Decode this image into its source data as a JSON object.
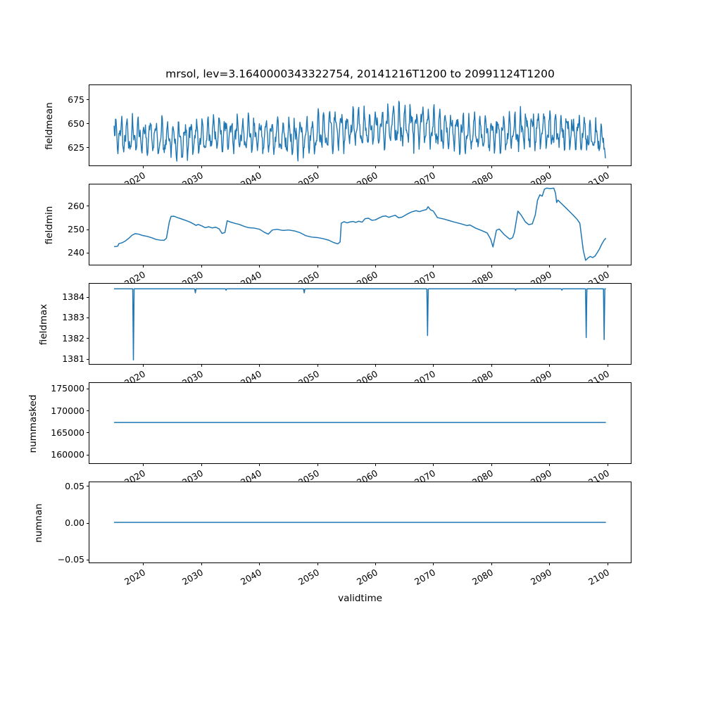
{
  "title": "mrsol, lev=3.1640000343322754, 20141216T1200 to 20991124T1200",
  "xlabel": "validtime",
  "line_color": "#1f77b4",
  "xlim": [
    2010.7,
    2104.2
  ],
  "x_ticks": [
    2020,
    2030,
    2040,
    2050,
    2060,
    2070,
    2080,
    2090,
    2100
  ],
  "x_tick_labels": [
    "2020",
    "2030",
    "2040",
    "2050",
    "2060",
    "2070",
    "2080",
    "2090",
    "2100"
  ],
  "chart_data": [
    {
      "type": "line",
      "name": "fieldmean",
      "ylabel": "fieldmean",
      "ylim": [
        604.7,
        690.4
      ],
      "yticks": [
        625,
        650,
        675
      ],
      "ytick_labels": [
        "625",
        "650",
        "675"
      ],
      "x_start": 2014.96,
      "x_end": 2099.9,
      "series_spec": {
        "kind": "seasonal_noise",
        "n": 1020,
        "seed": 987654321,
        "annual_amp": 13,
        "semiannual_amp": 6,
        "noise_amp": 6.5,
        "annual_phase": 0.4,
        "semiannual_freq": 2.15,
        "semiannual_phase": 1.7,
        "clamp": [
          608.8,
          686.5
        ],
        "end_value": 613,
        "base_anchors": [
          [
            2014.96,
            637
          ],
          [
            2022,
            636
          ],
          [
            2026,
            632
          ],
          [
            2032,
            638
          ],
          [
            2040,
            637
          ],
          [
            2047,
            634
          ],
          [
            2053,
            644
          ],
          [
            2060,
            644
          ],
          [
            2066,
            648
          ],
          [
            2070,
            644
          ],
          [
            2076,
            639
          ],
          [
            2082,
            638
          ],
          [
            2086,
            644
          ],
          [
            2091,
            642
          ],
          [
            2096,
            638
          ],
          [
            2099.9,
            630
          ]
        ],
        "envelope_anchors": [
          [
            2014.96,
            1.0
          ],
          [
            2024,
            1.05
          ],
          [
            2035,
            0.95
          ],
          [
            2046,
            1.0
          ],
          [
            2053,
            1.15
          ],
          [
            2058,
            1.0
          ],
          [
            2065.8,
            1.35
          ],
          [
            2067.5,
            1.1
          ],
          [
            2072,
            1.05
          ],
          [
            2080,
            0.95
          ],
          [
            2085,
            1.2
          ],
          [
            2090,
            1.05
          ],
          [
            2095,
            1.0
          ],
          [
            2099.9,
            0.95
          ]
        ]
      }
    },
    {
      "type": "line",
      "name": "fieldmin",
      "ylabel": "fieldmin",
      "ylim": [
        234.4,
        269.3
      ],
      "yticks": [
        240,
        250,
        260
      ],
      "ytick_labels": [
        "240",
        "250",
        "260"
      ],
      "x_start": 2014.96,
      "x_end": 2099.9,
      "points": [
        [
          2014.96,
          242.3
        ],
        [
          2015.3,
          242.3
        ],
        [
          2015.6,
          242.5
        ],
        [
          2015.8,
          243.6
        ],
        [
          2016.3,
          243.9
        ],
        [
          2016.9,
          244.7
        ],
        [
          2017.5,
          245.9
        ],
        [
          2018.1,
          247.3
        ],
        [
          2018.6,
          247.9
        ],
        [
          2019.2,
          247.7
        ],
        [
          2019.9,
          247.1
        ],
        [
          2020.7,
          246.7
        ],
        [
          2021.5,
          246.1
        ],
        [
          2022.2,
          245.4
        ],
        [
          2022.9,
          245.1
        ],
        [
          2023.6,
          245.0
        ],
        [
          2024.0,
          245.9
        ],
        [
          2024.5,
          253.0
        ],
        [
          2024.8,
          255.4
        ],
        [
          2025.3,
          255.5
        ],
        [
          2025.9,
          254.9
        ],
        [
          2026.6,
          254.3
        ],
        [
          2027.4,
          253.6
        ],
        [
          2028.1,
          252.9
        ],
        [
          2028.7,
          252.1
        ],
        [
          2029.1,
          251.5
        ],
        [
          2029.5,
          251.9
        ],
        [
          2030.1,
          251.3
        ],
        [
          2030.7,
          250.5
        ],
        [
          2031.3,
          250.9
        ],
        [
          2031.9,
          250.4
        ],
        [
          2032.5,
          250.7
        ],
        [
          2033.1,
          250.0
        ],
        [
          2033.6,
          248.0
        ],
        [
          2034.1,
          248.4
        ],
        [
          2034.5,
          253.5
        ],
        [
          2035.0,
          253.0
        ],
        [
          2035.8,
          252.4
        ],
        [
          2036.6,
          251.9
        ],
        [
          2037.4,
          251.1
        ],
        [
          2038.2,
          250.5
        ],
        [
          2039.2,
          250.3
        ],
        [
          2040.1,
          249.8
        ],
        [
          2040.9,
          248.5
        ],
        [
          2041.6,
          247.7
        ],
        [
          2042.3,
          249.5
        ],
        [
          2043.1,
          249.8
        ],
        [
          2044.1,
          249.3
        ],
        [
          2045.1,
          249.5
        ],
        [
          2046.1,
          249.1
        ],
        [
          2047.1,
          248.3
        ],
        [
          2048.1,
          247.0
        ],
        [
          2049.1,
          246.4
        ],
        [
          2050.1,
          246.2
        ],
        [
          2051.1,
          245.7
        ],
        [
          2052.1,
          245.0
        ],
        [
          2052.9,
          244.0
        ],
        [
          2053.6,
          243.5
        ],
        [
          2054.0,
          244.3
        ],
        [
          2054.2,
          252.5
        ],
        [
          2054.7,
          253.1
        ],
        [
          2055.2,
          252.6
        ],
        [
          2055.7,
          253.0
        ],
        [
          2056.2,
          253.2
        ],
        [
          2056.7,
          252.8
        ],
        [
          2057.2,
          253.3
        ],
        [
          2057.8,
          252.9
        ],
        [
          2058.3,
          254.4
        ],
        [
          2058.9,
          254.6
        ],
        [
          2059.5,
          253.7
        ],
        [
          2060.1,
          253.9
        ],
        [
          2060.7,
          254.7
        ],
        [
          2061.3,
          255.4
        ],
        [
          2061.9,
          255.6
        ],
        [
          2062.4,
          255.0
        ],
        [
          2063.0,
          255.5
        ],
        [
          2063.5,
          255.9
        ],
        [
          2064.1,
          254.8
        ],
        [
          2064.7,
          255.1
        ],
        [
          2065.5,
          256.3
        ],
        [
          2066.3,
          257.3
        ],
        [
          2067.1,
          257.9
        ],
        [
          2067.7,
          257.5
        ],
        [
          2068.3,
          258.0
        ],
        [
          2068.9,
          258.4
        ],
        [
          2069.2,
          259.6
        ],
        [
          2069.6,
          258.3
        ],
        [
          2070.1,
          257.7
        ],
        [
          2070.8,
          254.9
        ],
        [
          2072.0,
          254.2
        ],
        [
          2073.5,
          253.1
        ],
        [
          2075.0,
          252.1
        ],
        [
          2075.9,
          251.4
        ],
        [
          2076.4,
          251.7
        ],
        [
          2077.4,
          250.3
        ],
        [
          2078.4,
          249.3
        ],
        [
          2079.4,
          248.2
        ],
        [
          2080.0,
          245.5
        ],
        [
          2080.4,
          242.1
        ],
        [
          2081.0,
          249.4
        ],
        [
          2081.5,
          249.9
        ],
        [
          2082.3,
          247.6
        ],
        [
          2083.3,
          245.5
        ],
        [
          2083.8,
          246.2
        ],
        [
          2084.1,
          248.5
        ],
        [
          2084.7,
          257.7
        ],
        [
          2085.2,
          256.2
        ],
        [
          2086.0,
          253.0
        ],
        [
          2086.6,
          251.8
        ],
        [
          2087.2,
          252.2
        ],
        [
          2087.7,
          256.0
        ],
        [
          2088.1,
          262.5
        ],
        [
          2088.5,
          264.8
        ],
        [
          2088.9,
          264.2
        ],
        [
          2089.3,
          267.3
        ],
        [
          2089.7,
          267.7
        ],
        [
          2090.3,
          267.5
        ],
        [
          2090.9,
          267.7
        ],
        [
          2091.2,
          265.5
        ],
        [
          2091.4,
          261.4
        ],
        [
          2091.6,
          262.5
        ],
        [
          2092.3,
          260.8
        ],
        [
          2093.0,
          259.1
        ],
        [
          2093.8,
          257.1
        ],
        [
          2094.5,
          255.3
        ],
        [
          2095.0,
          253.9
        ],
        [
          2095.4,
          252.4
        ],
        [
          2095.7,
          246.5
        ],
        [
          2096.0,
          240.6
        ],
        [
          2096.4,
          236.3
        ],
        [
          2096.8,
          237.3
        ],
        [
          2097.2,
          238.0
        ],
        [
          2097.6,
          237.5
        ],
        [
          2098.0,
          238.1
        ],
        [
          2098.4,
          239.6
        ],
        [
          2098.8,
          241.3
        ],
        [
          2099.2,
          243.4
        ],
        [
          2099.6,
          245.1
        ],
        [
          2099.9,
          245.9
        ]
      ]
    },
    {
      "type": "line",
      "name": "fieldmax",
      "ylabel": "fieldmax",
      "ylim": [
        1380.7,
        1384.65
      ],
      "yticks": [
        1381,
        1382,
        1383,
        1384
      ],
      "ytick_labels": [
        "1381",
        "1382",
        "1383",
        "1384"
      ],
      "x_start": 2014.96,
      "x_end": 2099.9,
      "baseline": 1384.4,
      "spikes": [
        [
          2018.3,
          1380.9
        ],
        [
          2029.0,
          1384.2
        ],
        [
          2034.3,
          1384.33
        ],
        [
          2047.8,
          1384.2
        ],
        [
          2069.1,
          1382.1
        ],
        [
          2084.3,
          1384.32
        ],
        [
          2092.3,
          1384.33
        ],
        [
          2096.5,
          1382.0
        ],
        [
          2099.6,
          1381.9
        ]
      ]
    },
    {
      "type": "line",
      "name": "nummasked",
      "ylabel": "nummasked",
      "ylim": [
        157800,
        176300
      ],
      "yticks": [
        160000,
        165000,
        170000,
        175000
      ],
      "ytick_labels": [
        "160000",
        "165000",
        "170000",
        "175000"
      ],
      "x_start": 2014.96,
      "x_end": 2099.9,
      "constant": 167200
    },
    {
      "type": "line",
      "name": "numnan",
      "ylabel": "numnan",
      "ylim": [
        -0.0555,
        0.0555
      ],
      "yticks": [
        -0.05,
        0.0,
        0.05
      ],
      "ytick_labels": [
        "−0.05",
        "0.00",
        "0.05"
      ],
      "x_start": 2014.96,
      "x_end": 2099.9,
      "constant": 0
    }
  ]
}
